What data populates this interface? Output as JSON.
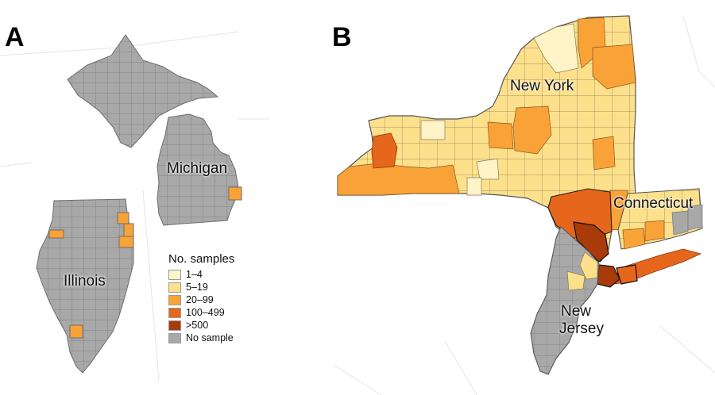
{
  "panels": {
    "a": "A",
    "b": "B"
  },
  "states": {
    "michigan": "Michigan",
    "illinois": "Illinois",
    "new_york": "New York",
    "connecticut": "Connecticut",
    "new_jersey_line1": "New",
    "new_jersey_line2": "Jersey"
  },
  "legend": {
    "title": "No. samples",
    "items": [
      {
        "label": "1–4",
        "color": "#fff4c8"
      },
      {
        "label": "5–19",
        "color": "#fde08c"
      },
      {
        "label": "20–99",
        "color": "#f9a237"
      },
      {
        "label": "100–499",
        "color": "#e6661b"
      },
      {
        "label": ">500",
        "color": "#a93a0a"
      },
      {
        "label": "No sample",
        "color": "#a8a8a8"
      }
    ]
  }
}
